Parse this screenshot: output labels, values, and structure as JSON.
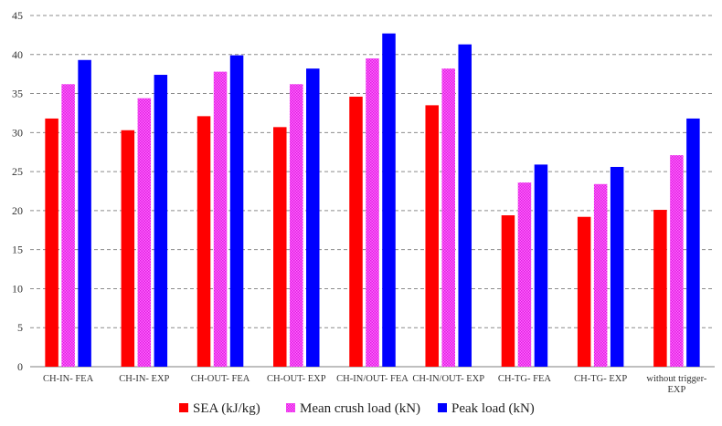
{
  "chart_data": {
    "type": "bar",
    "title": "",
    "xlabel": "",
    "ylabel": "",
    "ylim": [
      0,
      45
    ],
    "ytick_step": 5,
    "grid": true,
    "legend_position": "bottom",
    "categories": [
      "CH-IN- FEA",
      "CH-IN- EXP",
      "CH-OUT- FEA",
      "CH-OUT- EXP",
      "CH-IN/OUT- FEA",
      "CH-IN/OUT- EXP",
      "CH-TG- FEA",
      "CH-TG- EXP",
      "without trigger-\nEXP"
    ],
    "series": [
      {
        "name": "SEA (kJ/kg)",
        "color": "#ff0000",
        "pattern": "solid",
        "values": [
          31.8,
          30.3,
          32.1,
          30.7,
          34.6,
          33.5,
          19.4,
          19.2,
          20.1
        ]
      },
      {
        "name": "Mean crush load (kN)",
        "color": "#ff33ff",
        "pattern": "dotted",
        "values": [
          36.2,
          34.4,
          37.8,
          36.2,
          39.5,
          38.2,
          23.6,
          23.4,
          27.1
        ]
      },
      {
        "name": "Peak load (kN)",
        "color": "#0000ff",
        "pattern": "solid",
        "values": [
          39.3,
          37.4,
          39.9,
          38.2,
          42.7,
          41.3,
          25.9,
          25.6,
          31.8
        ]
      }
    ]
  }
}
